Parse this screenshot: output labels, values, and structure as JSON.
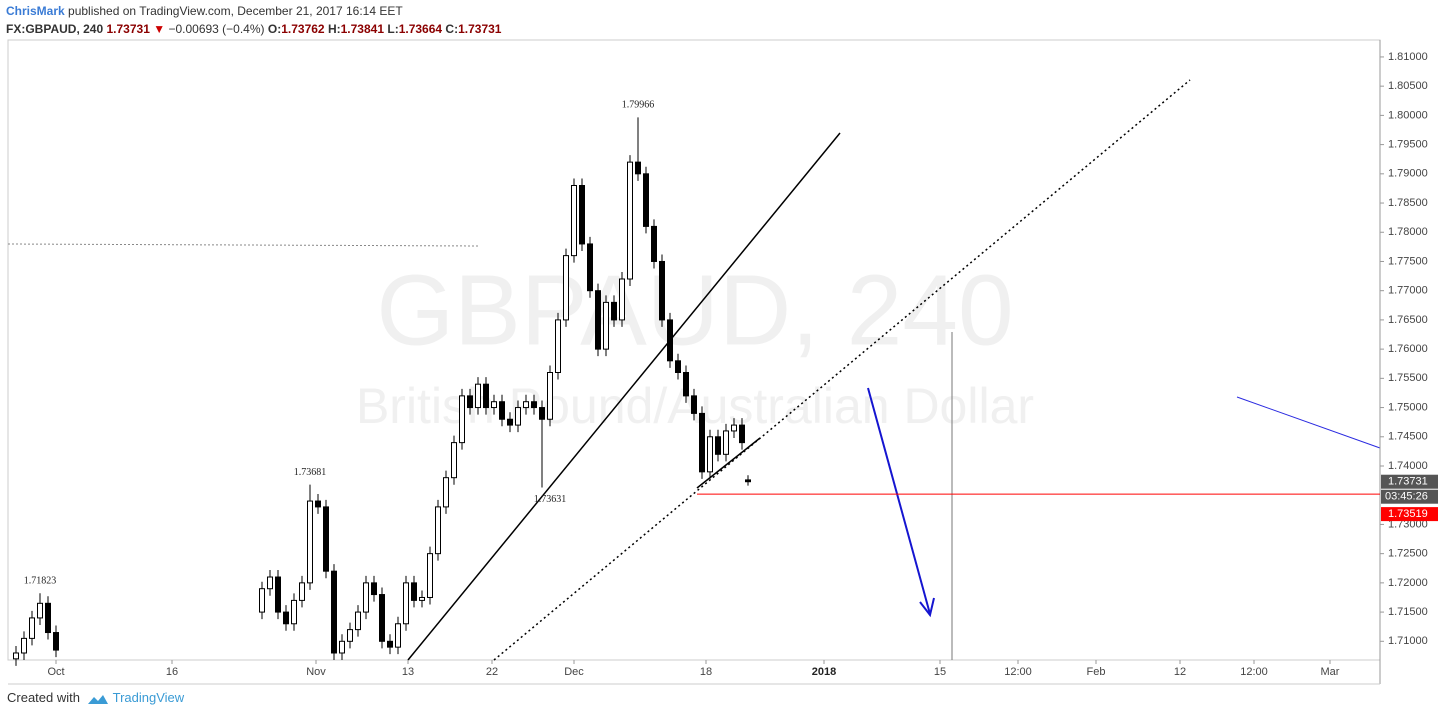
{
  "header": {
    "author": "ChrisMark",
    "published": "published on TradingView.com, December 21, 2017 16:14 EET",
    "symbol": "FX:GBPAUD, 240",
    "last": "1.73731",
    "arrow": "▼",
    "change": "−0.00693 (−0.4%)",
    "ohlc": [
      {
        "label": "O:",
        "value": "1.73762"
      },
      {
        "label": "H:",
        "value": "1.73841"
      },
      {
        "label": "L:",
        "value": "1.73664"
      },
      {
        "label": "C:",
        "value": "1.73731"
      }
    ]
  },
  "footer": {
    "created": "Created with",
    "brand": "TradingView"
  },
  "chart_data": {
    "type": "candlestick",
    "watermark": [
      "GBPAUD, 240",
      "British Pound/Australian Dollar"
    ],
    "up_color": "#ffffff",
    "down_color": "#000000",
    "border_color": "#000000",
    "x": [
      4,
      8,
      12,
      16,
      20,
      24,
      127,
      131,
      135,
      139,
      143,
      147,
      151,
      155,
      159,
      163,
      167,
      171,
      175,
      179,
      183,
      187,
      191,
      195,
      199,
      203,
      207,
      211,
      215,
      219,
      223,
      227,
      231,
      235,
      239,
      243,
      247,
      251,
      255,
      259,
      263,
      267,
      271,
      275,
      279,
      283,
      287,
      291,
      295,
      299,
      303,
      307,
      311,
      315,
      319,
      323,
      327,
      331,
      335,
      339,
      343,
      347,
      351,
      355,
      359,
      363,
      367,
      370
    ],
    "open": [
      1.707,
      1.708,
      1.7105,
      1.714,
      1.7165,
      1.7115,
      1.715,
      1.719,
      1.721,
      1.715,
      1.713,
      1.717,
      1.72,
      1.734,
      1.733,
      1.722,
      1.708,
      1.71,
      1.712,
      1.715,
      1.72,
      1.718,
      1.71,
      1.709,
      1.713,
      1.72,
      1.717,
      1.7175,
      1.725,
      1.733,
      1.738,
      1.744,
      1.752,
      1.75,
      1.754,
      1.75,
      1.751,
      1.748,
      1.747,
      1.75,
      1.751,
      1.75,
      1.748,
      1.756,
      1.765,
      1.776,
      1.788,
      1.778,
      1.77,
      1.76,
      1.768,
      1.765,
      1.772,
      1.792,
      1.79,
      1.781,
      1.775,
      1.765,
      1.758,
      1.756,
      1.752,
      1.749,
      1.739,
      1.745,
      1.742,
      1.746,
      1.747,
      1.73762
    ],
    "high": [
      1.7092,
      1.7117,
      1.7152,
      1.71823,
      1.7177,
      1.7127,
      1.7202,
      1.7222,
      1.7222,
      1.7162,
      1.7182,
      1.7212,
      1.73681,
      1.7352,
      1.7342,
      1.7232,
      1.7112,
      1.7132,
      1.7162,
      1.7212,
      1.7212,
      1.7192,
      1.7112,
      1.7142,
      1.7212,
      1.7212,
      1.7187,
      1.7262,
      1.7342,
      1.7392,
      1.7452,
      1.7532,
      1.7532,
      1.7552,
      1.7552,
      1.7522,
      1.7522,
      1.7492,
      1.7512,
      1.7522,
      1.7522,
      1.7512,
      1.7572,
      1.7662,
      1.7772,
      1.7892,
      1.7892,
      1.7792,
      1.7712,
      1.7692,
      1.7692,
      1.7732,
      1.7932,
      1.79966,
      1.7912,
      1.7822,
      1.7762,
      1.7662,
      1.7592,
      1.7572,
      1.7532,
      1.7502,
      1.7462,
      1.7462,
      1.7472,
      1.7482,
      1.7482,
      1.73841
    ],
    "low": [
      1.7058,
      1.7068,
      1.7093,
      1.7128,
      1.7103,
      1.7073,
      1.7138,
      1.7178,
      1.7138,
      1.7118,
      1.7118,
      1.7158,
      1.7188,
      1.7318,
      1.7208,
      1.7068,
      1.7068,
      1.7088,
      1.7108,
      1.7138,
      1.7168,
      1.7088,
      1.7078,
      1.7078,
      1.7118,
      1.7158,
      1.7158,
      1.7163,
      1.7238,
      1.7318,
      1.7368,
      1.7428,
      1.7488,
      1.7488,
      1.7488,
      1.7488,
      1.7468,
      1.7458,
      1.7458,
      1.7488,
      1.7488,
      1.73631,
      1.7468,
      1.7548,
      1.7638,
      1.7748,
      1.7768,
      1.7688,
      1.7588,
      1.7588,
      1.7638,
      1.7638,
      1.7708,
      1.7888,
      1.7798,
      1.7738,
      1.7638,
      1.7568,
      1.7548,
      1.7508,
      1.7478,
      1.7378,
      1.7378,
      1.7408,
      1.7408,
      1.7448,
      1.7428,
      1.73664
    ],
    "close": [
      1.708,
      1.7105,
      1.714,
      1.7165,
      1.7115,
      1.7085,
      1.719,
      1.721,
      1.715,
      1.713,
      1.717,
      1.72,
      1.734,
      1.733,
      1.722,
      1.708,
      1.71,
      1.712,
      1.715,
      1.72,
      1.718,
      1.71,
      1.709,
      1.713,
      1.72,
      1.717,
      1.7175,
      1.725,
      1.733,
      1.738,
      1.744,
      1.752,
      1.75,
      1.754,
      1.75,
      1.751,
      1.748,
      1.747,
      1.75,
      1.751,
      1.75,
      1.748,
      1.756,
      1.765,
      1.776,
      1.788,
      1.778,
      1.77,
      1.76,
      1.768,
      1.765,
      1.772,
      1.792,
      1.79,
      1.781,
      1.775,
      1.765,
      1.758,
      1.756,
      1.752,
      1.749,
      1.739,
      1.745,
      1.742,
      1.746,
      1.747,
      1.744,
      1.73731
    ],
    "annotations": [
      {
        "text": "1.71823",
        "x": 16,
        "y": 1.71823,
        "position": "above"
      },
      {
        "text": "1.73681",
        "x": 151,
        "y": 1.73681,
        "position": "above"
      },
      {
        "text": "1.79966",
        "x": 315,
        "y": 1.79966,
        "position": "above"
      },
      {
        "text": "1.73631",
        "x": 271,
        "y": 1.73631,
        "position": "below"
      }
    ],
    "xlim": [
      0,
      686
    ],
    "ylim": [
      1.7068,
      1.8129
    ],
    "xticks": [
      {
        "value": 24,
        "label": "Oct"
      },
      {
        "value": 82,
        "label": "16"
      },
      {
        "value": 154,
        "label": "Nov"
      },
      {
        "value": 200,
        "label": "13"
      },
      {
        "value": 242,
        "label": "22"
      },
      {
        "value": 283,
        "label": "Dec"
      },
      {
        "value": 349,
        "label": "18"
      },
      {
        "value": 408,
        "label": "2018"
      },
      {
        "value": 466,
        "label": "15"
      },
      {
        "value": 505,
        "label": "12:00"
      },
      {
        "value": 544,
        "label": "Feb"
      },
      {
        "value": 586,
        "label": "12"
      },
      {
        "value": 623,
        "label": "12:00"
      },
      {
        "value": 661,
        "label": "Mar"
      }
    ],
    "yticks": [
      {
        "value": 1.71,
        "label": "1.71000"
      },
      {
        "value": 1.715,
        "label": "1.71500"
      },
      {
        "value": 1.72,
        "label": "1.72000"
      },
      {
        "value": 1.725,
        "label": "1.72500"
      },
      {
        "value": 1.73,
        "label": "1.73000"
      },
      {
        "value": 1.74,
        "label": "1.74000"
      },
      {
        "value": 1.745,
        "label": "1.74500"
      },
      {
        "value": 1.75,
        "label": "1.75000"
      },
      {
        "value": 1.755,
        "label": "1.75500"
      },
      {
        "value": 1.76,
        "label": "1.76000"
      },
      {
        "value": 1.765,
        "label": "1.76500"
      },
      {
        "value": 1.77,
        "label": "1.77000"
      },
      {
        "value": 1.775,
        "label": "1.77500"
      },
      {
        "value": 1.78,
        "label": "1.78000"
      },
      {
        "value": 1.785,
        "label": "1.78500"
      },
      {
        "value": 1.79,
        "label": "1.79000"
      },
      {
        "value": 1.795,
        "label": "1.79500"
      },
      {
        "value": 1.8,
        "label": "1.80000"
      },
      {
        "value": 1.805,
        "label": "1.80500"
      },
      {
        "value": 1.81,
        "label": "1.81000"
      }
    ],
    "last_price": {
      "value": 1.73731,
      "label": "1.73731",
      "color": "#555555",
      "countdown": "03:45:26"
    },
    "alert_price": {
      "value": 1.73519,
      "label": "1.73519",
      "color": "#ff0000"
    }
  }
}
